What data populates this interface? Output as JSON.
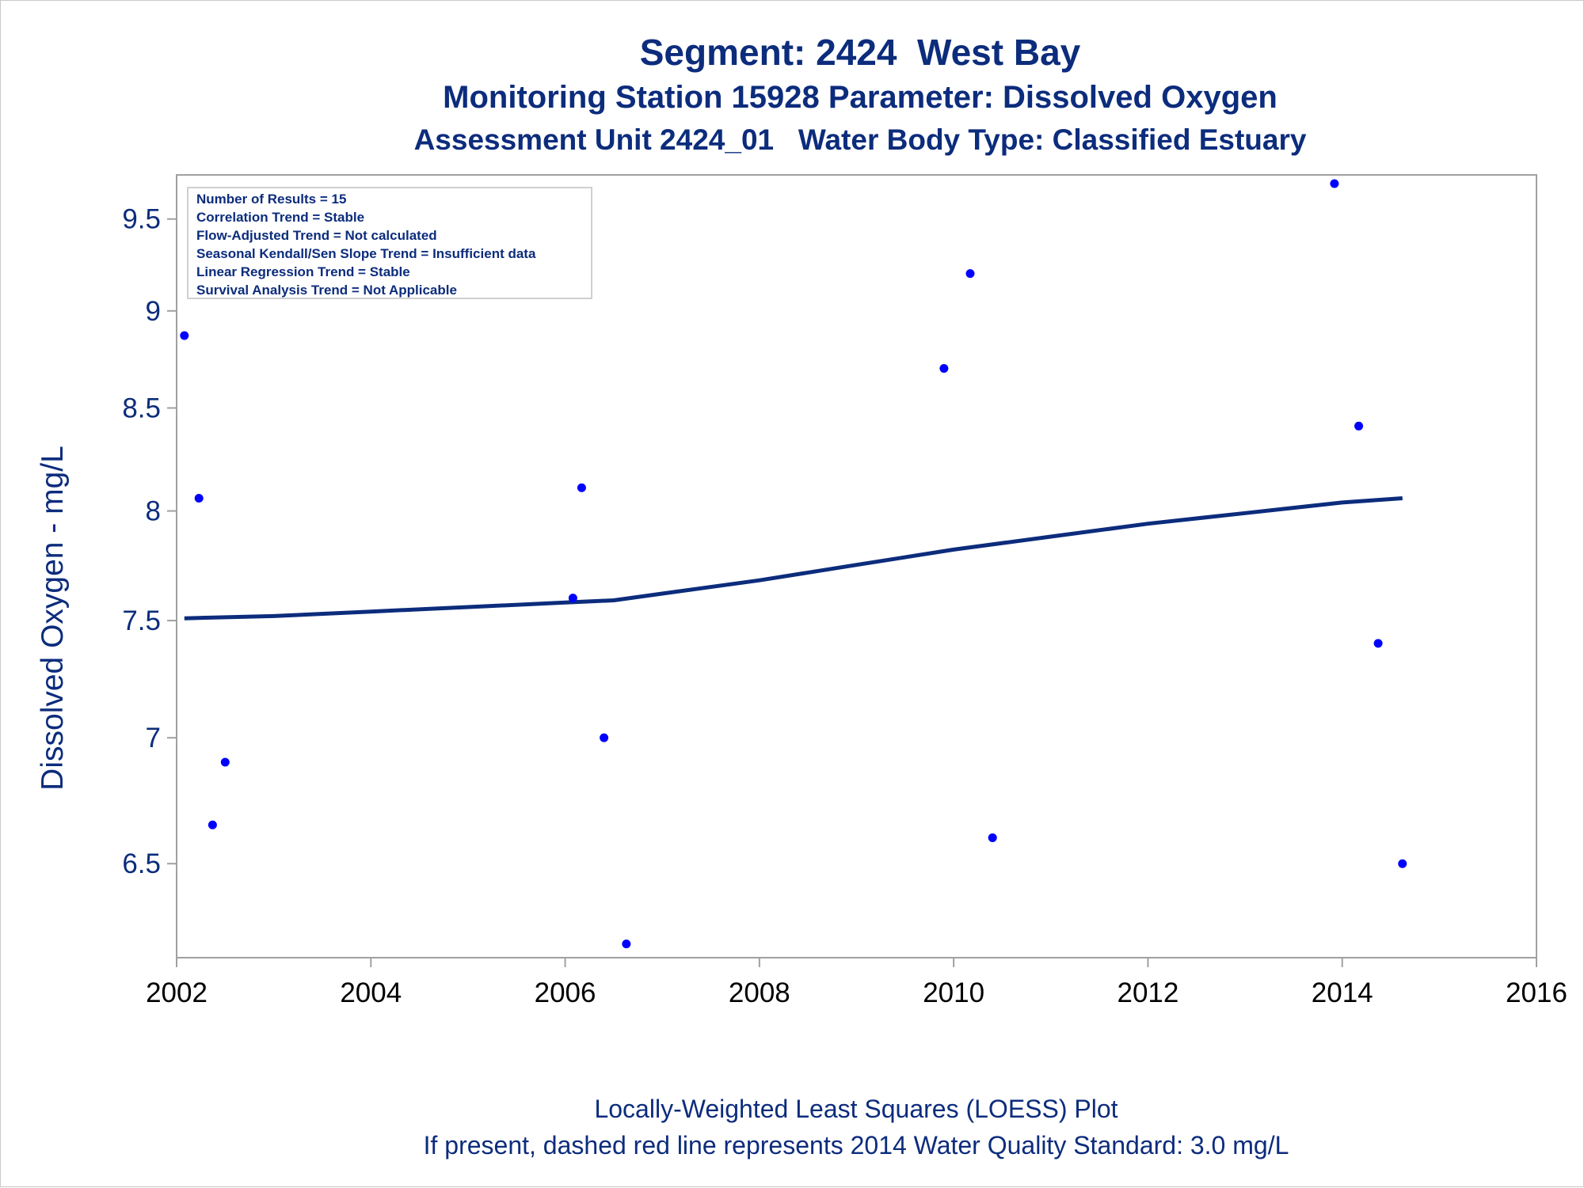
{
  "header": {
    "title": "Segment: 2424  West Bay",
    "subtitle": "Monitoring Station 15928 Parameter: Dissolved Oxygen",
    "subtitle2": "Assessment Unit 2424_01   Water Body Type: Classified Estuary"
  },
  "footer": {
    "line1": "Locally-Weighted Least Squares (LOESS) Plot",
    "line2": "If present, dashed red line represents 2014 Water Quality Standard: 3.0 mg/L"
  },
  "colors": {
    "text": "#0c2c7c",
    "points": "#0000ff",
    "trend_line": "#0c2c7c",
    "frame": "#a0a0a0"
  },
  "chart_data": {
    "type": "scatter",
    "ylabel": "Dissolved Oxygen - mg/L",
    "xlabel": "",
    "xlim": [
      2002,
      2016
    ],
    "ylim": [
      6.15,
      9.75
    ],
    "x_ticks": [
      "2002",
      "2004",
      "2006",
      "2008",
      "2010",
      "2012",
      "2014",
      "2016"
    ],
    "y_ticks": [
      "6.5",
      "7",
      "7.5",
      "8",
      "8.5",
      "9",
      "9.5"
    ],
    "y_scale": "log",
    "grid": false,
    "legend_position": "top-left",
    "stats_box": [
      "Number of Results = 15",
      "Correlation Trend = Stable",
      "Flow-Adjusted Trend = Not calculated",
      "Seasonal Kendall/Sen Slope Trend = Insufficient data",
      "Linear Regression Trend = Stable",
      "Survival Analysis Trend = Not Applicable"
    ],
    "points": [
      {
        "x": 2002.08,
        "y": 8.87
      },
      {
        "x": 2002.23,
        "y": 8.06
      },
      {
        "x": 2002.37,
        "y": 6.65
      },
      {
        "x": 2002.5,
        "y": 6.9
      },
      {
        "x": 2006.08,
        "y": 7.6
      },
      {
        "x": 2006.17,
        "y": 8.11
      },
      {
        "x": 2006.4,
        "y": 7.0
      },
      {
        "x": 2006.63,
        "y": 6.2
      },
      {
        "x": 2009.9,
        "y": 8.7
      },
      {
        "x": 2010.17,
        "y": 9.2
      },
      {
        "x": 2010.4,
        "y": 6.6
      },
      {
        "x": 2013.92,
        "y": 9.7
      },
      {
        "x": 2014.17,
        "y": 8.41
      },
      {
        "x": 2014.37,
        "y": 7.4
      },
      {
        "x": 2014.62,
        "y": 6.5
      }
    ],
    "series": [
      {
        "type": "loess",
        "x": [
          2002.08,
          2003,
          2004,
          2005,
          2006,
          2006.5,
          2007,
          2008,
          2009,
          2010,
          2011,
          2012,
          2013,
          2014,
          2014.62
        ],
        "y": [
          7.51,
          7.52,
          7.54,
          7.56,
          7.58,
          7.59,
          7.62,
          7.68,
          7.75,
          7.82,
          7.88,
          7.94,
          7.99,
          8.04,
          8.06
        ]
      }
    ]
  }
}
